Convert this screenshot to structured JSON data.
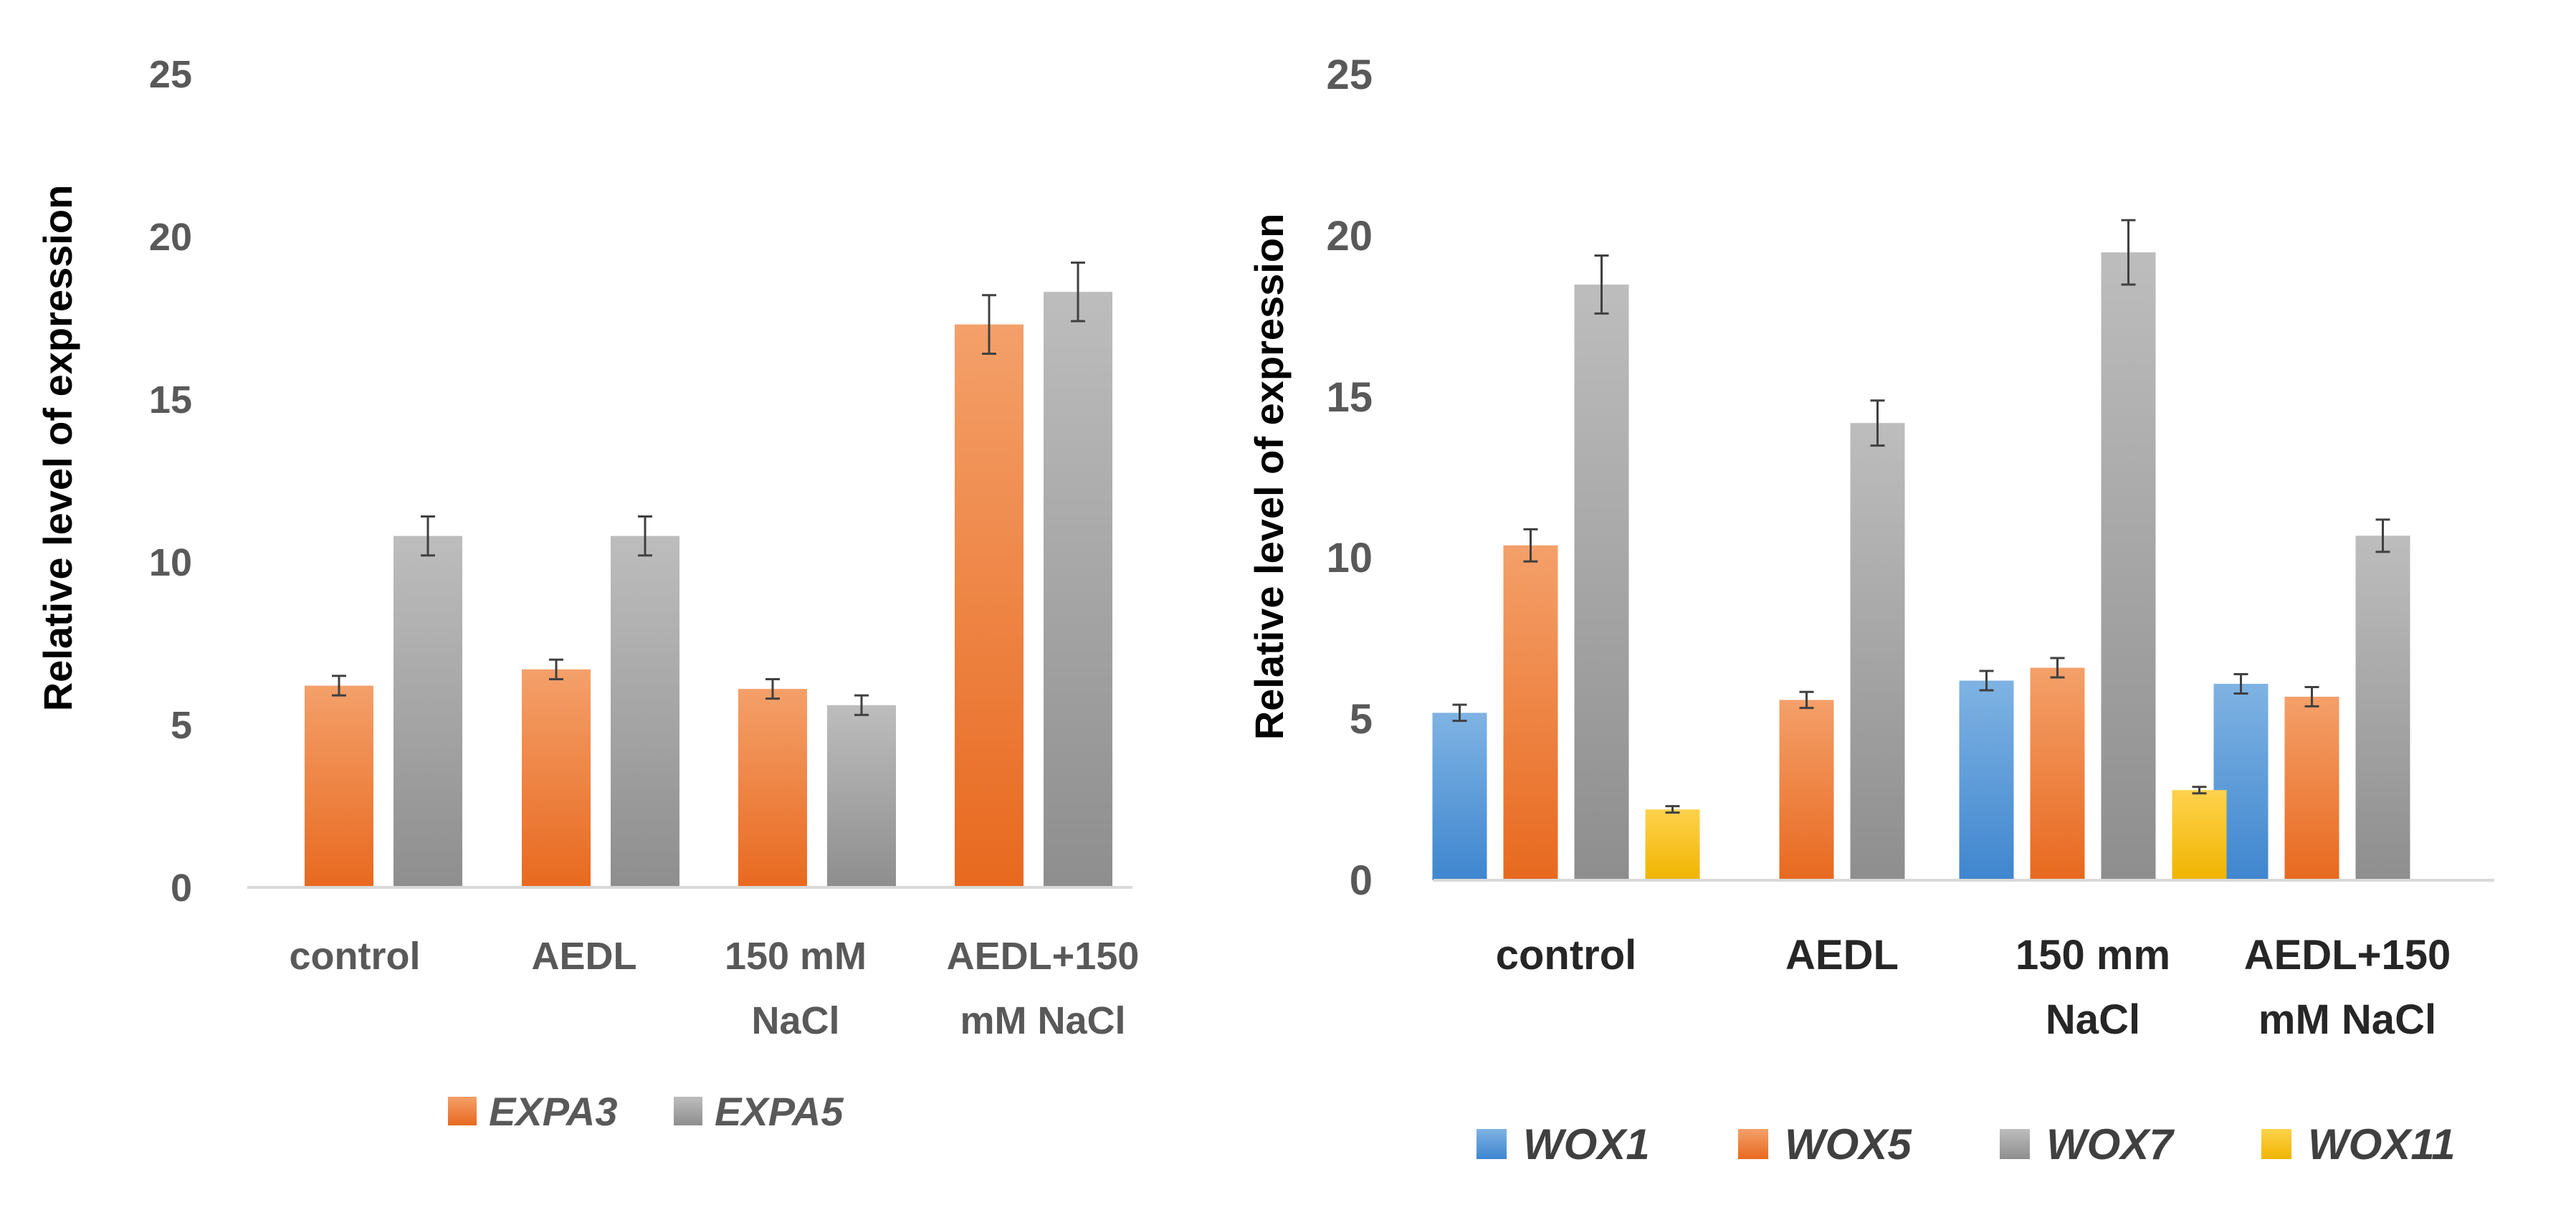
{
  "colors": {
    "orange": "#ED7D31",
    "gray": "#A5A5A5",
    "blue": "#5B9BD5",
    "yellow": "#FFC000",
    "tick_text": "#595959",
    "axis_line": "#D9D9D9",
    "errorbar": "#404040"
  },
  "chart_data": [
    {
      "type": "bar",
      "title": "",
      "xlabel": "",
      "ylabel": "Relative level  of expression",
      "ylim": [
        0,
        25
      ],
      "yticks": [
        "0",
        "5",
        "10",
        "15",
        "20",
        "25"
      ],
      "categories": [
        [
          "control"
        ],
        [
          "AEDL"
        ],
        [
          "150 mM",
          "NaCl"
        ],
        [
          "AEDL+150",
          "mM NaCl"
        ]
      ],
      "legend_position": "bottom",
      "grid": false,
      "series": [
        {
          "name": "EXPA3",
          "color": "orange",
          "values": [
            6.2,
            6.7,
            6.1,
            17.3
          ],
          "errors": [
            0.3,
            0.3,
            0.3,
            0.9
          ]
        },
        {
          "name": "EXPA5",
          "color": "gray",
          "values": [
            10.8,
            10.8,
            5.6,
            18.3
          ],
          "errors": [
            0.6,
            0.6,
            0.3,
            0.9
          ]
        }
      ]
    },
    {
      "type": "bar",
      "title": "",
      "xlabel": "",
      "ylabel": "Relative level  of expression",
      "ylim": [
        0,
        25
      ],
      "yticks": [
        "0",
        "5",
        "10",
        "15",
        "20",
        "25"
      ],
      "categories": [
        [
          "control"
        ],
        [
          "AEDL"
        ],
        [
          "150 mm",
          "NaCl"
        ],
        [
          "AEDL+150",
          "mM NaCl"
        ]
      ],
      "legend_position": "bottom",
      "grid": false,
      "series": [
        {
          "name": "WOX1",
          "color": "blue",
          "values": [
            5.2,
            null,
            6.2,
            6.1
          ],
          "errors": [
            0.25,
            null,
            0.3,
            0.3
          ]
        },
        {
          "name": "WOX5",
          "color": "orange",
          "values": [
            10.4,
            5.6,
            6.6,
            5.7
          ],
          "errors": [
            0.5,
            0.25,
            0.3,
            0.3
          ]
        },
        {
          "name": "WOX7",
          "color": "gray",
          "values": [
            18.5,
            14.2,
            19.5,
            10.7
          ],
          "errors": [
            0.9,
            0.7,
            1.0,
            0.5
          ]
        },
        {
          "name": "WOX11",
          "color": "yellow",
          "values": [
            2.2,
            null,
            2.8,
            null
          ],
          "errors": [
            0.1,
            null,
            0.1,
            null
          ]
        }
      ]
    }
  ]
}
